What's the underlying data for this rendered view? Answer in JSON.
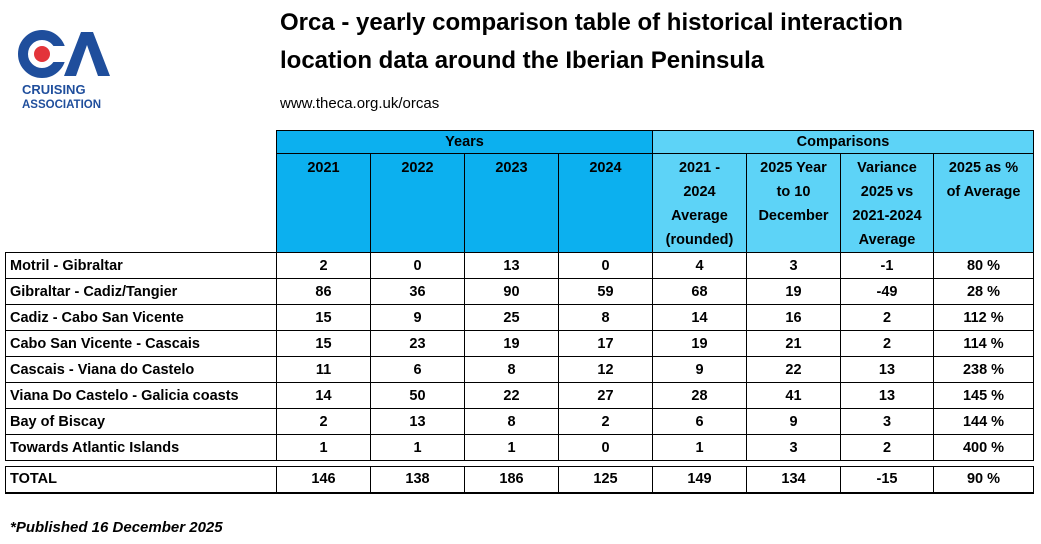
{
  "logo": {
    "lines": [
      "CRUISING",
      "ASSOCIATION"
    ]
  },
  "header": {
    "title_lines": [
      "Orca - yearly comparison table of historical interaction",
      "location data around the Iberian Peninsula"
    ],
    "url": "www.theca.org.uk/orcas"
  },
  "table": {
    "groups": [
      "Years",
      "Comparisons"
    ],
    "columns": [
      [
        "2021"
      ],
      [
        "2022"
      ],
      [
        "2023"
      ],
      [
        "2024"
      ],
      [
        "2021 -",
        "2024",
        "Average",
        "(rounded)"
      ],
      [
        "2025 Year",
        "to 10",
        "December"
      ],
      [
        "Variance",
        "2025 vs",
        "2021-2024",
        "Average"
      ],
      [
        "2025 as %",
        "of Average"
      ]
    ],
    "rows": [
      [
        "Motril - Gibraltar",
        "2",
        "0",
        "13",
        "0",
        "4",
        "3",
        "-1",
        "80 %"
      ],
      [
        "Gibraltar - Cadiz/Tangier",
        "86",
        "36",
        "90",
        "59",
        "68",
        "19",
        "-49",
        "28 %"
      ],
      [
        "Cadiz - Cabo San Vicente",
        "15",
        "9",
        "25",
        "8",
        "14",
        "16",
        "2",
        "112 %"
      ],
      [
        "Cabo San Vicente - Cascais",
        "15",
        "23",
        "19",
        "17",
        "19",
        "21",
        "2",
        "114 %"
      ],
      [
        "Cascais - Viana do Castelo",
        "11",
        "6",
        "8",
        "12",
        "9",
        "22",
        "13",
        "238 %"
      ],
      [
        "Viana Do Castelo - Galicia coasts",
        "14",
        "50",
        "22",
        "27",
        "28",
        "41",
        "13",
        "145 %"
      ],
      [
        "Bay of Biscay",
        "2",
        "13",
        "8",
        "2",
        "6",
        "9",
        "3",
        "144 %"
      ],
      [
        "Towards Atlantic Islands",
        "1",
        "1",
        "1",
        "0",
        "1",
        "3",
        "2",
        "400 %"
      ]
    ],
    "total": [
      "TOTAL",
      "146",
      "138",
      "186",
      "125",
      "149",
      "134",
      "-15",
      "90 %"
    ]
  },
  "footnote": "*Published 16 December 2025"
}
